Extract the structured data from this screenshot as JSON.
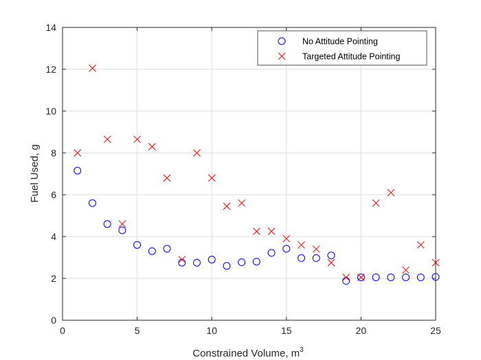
{
  "chart_data": {
    "type": "scatter",
    "title": "",
    "xlabel": "Constrained Volume, m",
    "xlabel_superscript": "3",
    "ylabel": "Fuel Used, g",
    "xlim": [
      0,
      25
    ],
    "ylim": [
      0,
      14
    ],
    "xticks": [
      "0",
      "5",
      "10",
      "15",
      "20",
      "25"
    ],
    "yticks": [
      "0",
      "2",
      "4",
      "6",
      "8",
      "10",
      "12",
      "14"
    ],
    "grid": true,
    "legend": "top-right",
    "series": [
      {
        "name": "No Attitude Pointing",
        "marker": "circle",
        "color": "#0000ff",
        "x": [
          1,
          2,
          3,
          4,
          5,
          6,
          7,
          8,
          9,
          10,
          11,
          12,
          13,
          14,
          15,
          16,
          17,
          18,
          19,
          20,
          21,
          22,
          23,
          24,
          25
        ],
        "y": [
          7.15,
          5.6,
          4.6,
          4.3,
          3.6,
          3.3,
          3.42,
          2.75,
          2.75,
          2.9,
          2.6,
          2.77,
          2.8,
          3.22,
          3.42,
          2.97,
          2.97,
          3.1,
          1.88,
          2.05,
          2.05,
          2.05,
          2.05,
          2.05,
          2.07
        ]
      },
      {
        "name": "Targeted Attitude Pointing",
        "marker": "x",
        "color": "#ff0000",
        "x": [
          1,
          2,
          3,
          4,
          5,
          6,
          7,
          8,
          9,
          10,
          11,
          12,
          13,
          14,
          15,
          16,
          17,
          18,
          19,
          20,
          21,
          22,
          23,
          24,
          25
        ],
        "y": [
          8.0,
          12.05,
          8.65,
          4.6,
          8.65,
          8.3,
          6.8,
          2.9,
          8.0,
          6.8,
          5.45,
          5.6,
          4.25,
          4.25,
          3.9,
          3.6,
          3.4,
          2.75,
          2.05,
          2.05,
          5.6,
          6.1,
          2.4,
          3.6,
          2.75
        ]
      }
    ]
  }
}
